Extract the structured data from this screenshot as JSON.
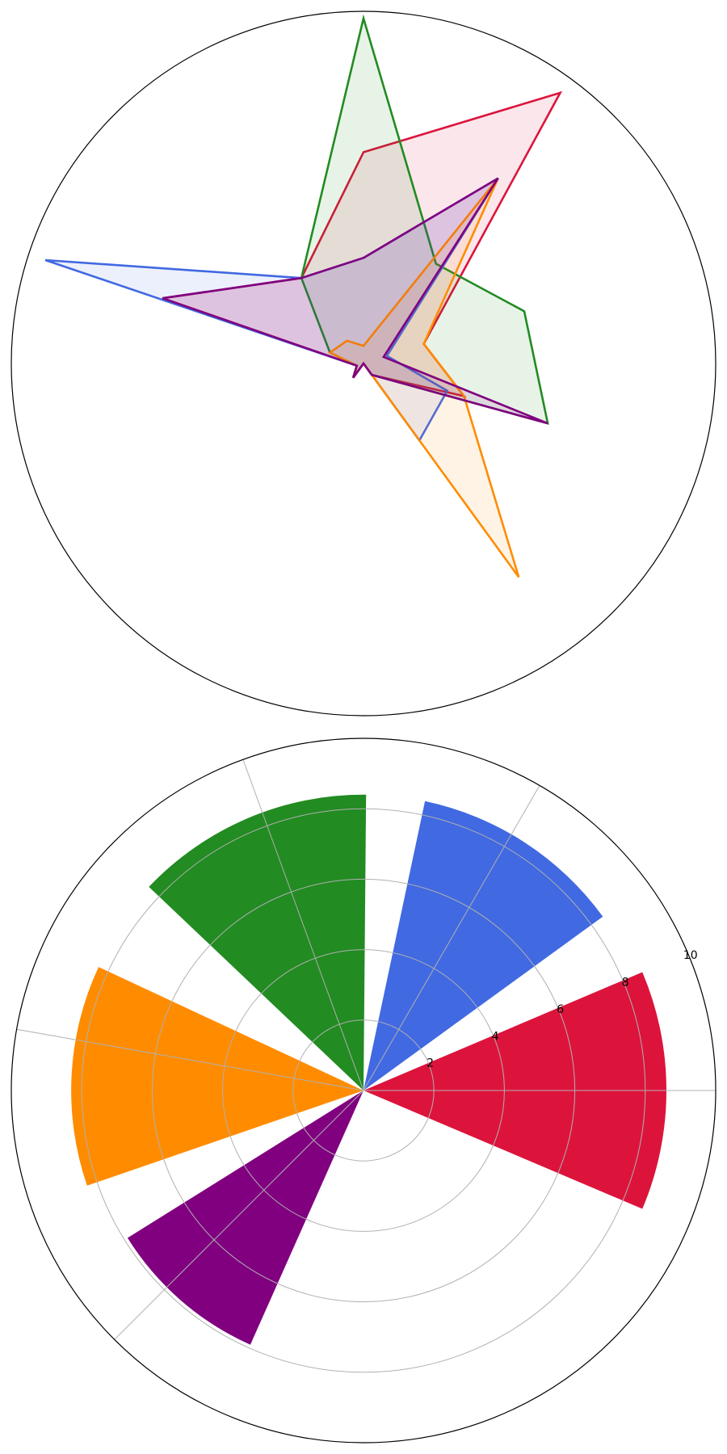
{
  "chart_data": [
    {
      "type": "radar",
      "radial_max": 10,
      "axes_count": 10,
      "start_angle_deg": 90,
      "direction": "clockwise",
      "grid": false,
      "series": [
        {
          "color": "#DC143C",
          "values": [
            6.0,
            9.5,
            1.8,
            3.0,
            0.4,
            0.0,
            0.5,
            0.2,
            6.0,
            3.0
          ]
        },
        {
          "color": "#228B22",
          "values": [
            9.8,
            3.5,
            4.8,
            5.5,
            0.4,
            0.0,
            0.5,
            0.2,
            1.0,
            3.0
          ]
        },
        {
          "color": "#4169E1",
          "values": [
            3.0,
            6.5,
            0.7,
            2.5,
            2.7,
            0.0,
            0.5,
            0.2,
            9.5,
            3.0
          ]
        },
        {
          "color": "#FF8C00",
          "values": [
            0.5,
            6.5,
            1.8,
            3.0,
            7.5,
            0.0,
            0.5,
            0.2,
            1.0,
            0.8
          ]
        },
        {
          "color": "#800080",
          "values": [
            3.0,
            6.5,
            0.6,
            5.5,
            0.4,
            0.0,
            0.5,
            0.2,
            6.0,
            3.0
          ]
        }
      ]
    },
    {
      "type": "polar-bar",
      "ylim": [
        0,
        10
      ],
      "radial_ticks": [
        2,
        4,
        6,
        8,
        10
      ],
      "tick_labels": [
        "2",
        "4",
        "6",
        "8",
        "10"
      ],
      "angular_grid_deg": [
        0,
        60,
        110,
        170,
        225
      ],
      "bars": [
        {
          "color": "#DC143C",
          "value": 8.6,
          "theta_deg": 0,
          "width_deg": 46
        },
        {
          "color": "#4169E1",
          "value": 8.4,
          "theta_deg": 57,
          "width_deg": 42
        },
        {
          "color": "#228B22",
          "value": 8.4,
          "theta_deg": 113,
          "width_deg": 47
        },
        {
          "color": "#FF8C00",
          "value": 8.3,
          "theta_deg": 177,
          "width_deg": 44
        },
        {
          "color": "#800080",
          "value": 7.9,
          "theta_deg": 229,
          "width_deg": 34
        }
      ]
    }
  ]
}
